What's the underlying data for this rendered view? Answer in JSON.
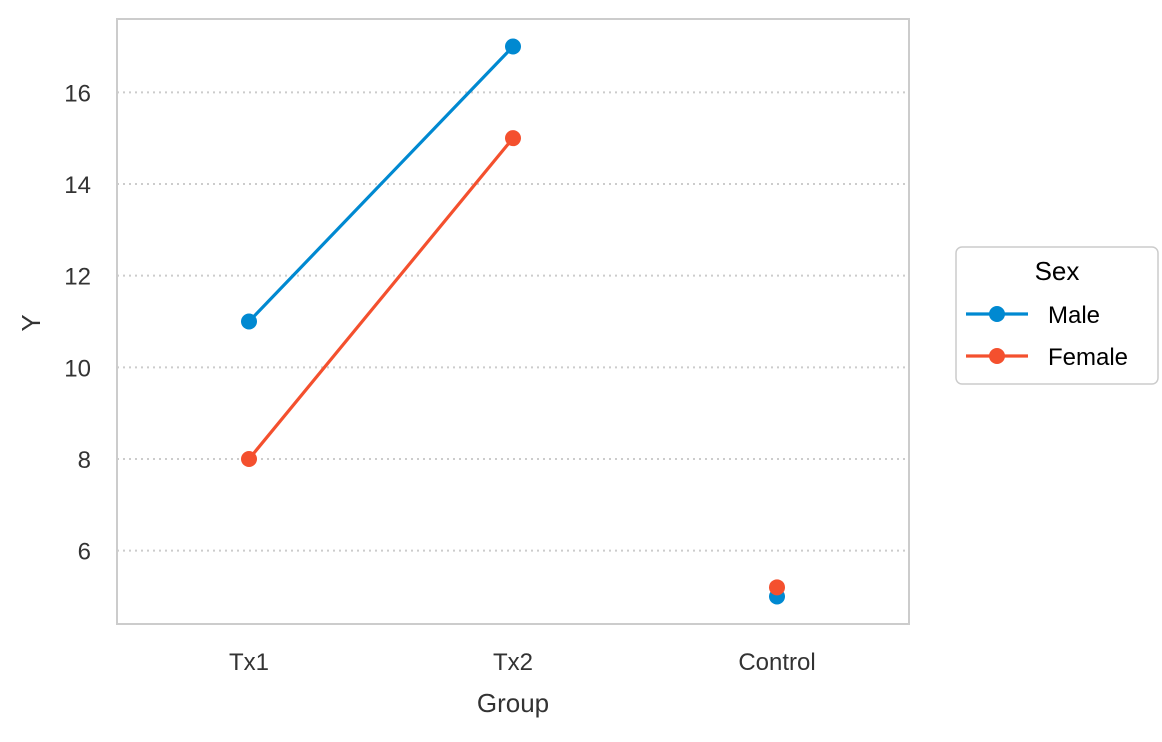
{
  "chart_data": {
    "type": "line",
    "title": "",
    "xlabel": "Group",
    "ylabel": "Y",
    "categories": [
      "Tx1",
      "Tx2",
      "Control"
    ],
    "ylim": [
      4.4,
      17.6
    ],
    "yticks": [
      6,
      8,
      10,
      12,
      14,
      16
    ],
    "grid": "y-dotted",
    "legend": {
      "title": "Sex",
      "placement": "right"
    },
    "series": [
      {
        "name": "Male",
        "color": "#0089D1",
        "values": [
          11,
          17,
          5
        ],
        "connected": [
          true,
          true,
          false
        ]
      },
      {
        "name": "Female",
        "color": "#F4502E",
        "values": [
          8,
          15,
          5.2
        ],
        "connected": [
          true,
          true,
          false
        ]
      }
    ]
  }
}
